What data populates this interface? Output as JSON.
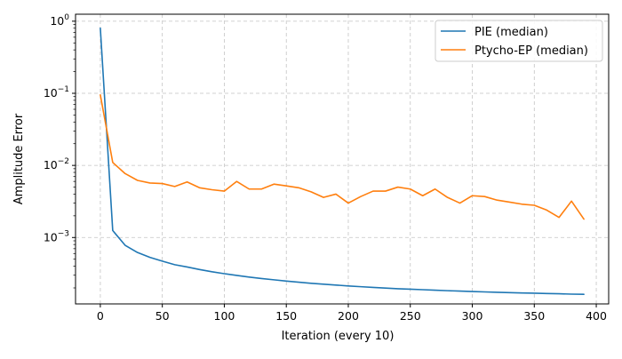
{
  "chart_data": {
    "type": "line",
    "title": "",
    "xlabel": "Iteration (every 10)",
    "ylabel": "Amplitude Error",
    "yscale": "log",
    "xlim": [
      -20,
      410
    ],
    "ylim": [
      0.00012,
      1.25
    ],
    "grid": true,
    "legend_position": "top-right",
    "x_ticks": [
      0,
      50,
      100,
      150,
      200,
      250,
      300,
      350,
      400
    ],
    "x_tick_labels": [
      "0",
      "50",
      "100",
      "150",
      "200",
      "250",
      "300",
      "350",
      "400"
    ],
    "y_ticks": [
      0.001,
      0.01,
      0.1,
      1
    ],
    "y_tick_labels": [
      "10",
      "10",
      "10",
      "10"
    ],
    "y_tick_exponents": [
      "−3",
      "−2",
      "−1",
      "0"
    ],
    "x": [
      0,
      10,
      20,
      30,
      40,
      50,
      60,
      70,
      80,
      90,
      100,
      110,
      120,
      130,
      140,
      150,
      160,
      170,
      180,
      190,
      200,
      210,
      220,
      230,
      240,
      250,
      260,
      270,
      280,
      290,
      300,
      310,
      320,
      330,
      340,
      350,
      360,
      370,
      380,
      390
    ],
    "series": [
      {
        "name": "PIE (median)",
        "color": "#1f77b4",
        "values": [
          0.8,
          0.00125,
          0.00078,
          0.00062,
          0.00053,
          0.00047,
          0.00042,
          0.00039,
          0.00036,
          0.000335,
          0.000315,
          0.000298,
          0.000283,
          0.00027,
          0.000259,
          0.000249,
          0.00024,
          0.000232,
          0.000225,
          0.000219,
          0.000213,
          0.000208,
          0.000203,
          0.000199,
          0.000195,
          0.000192,
          0.000189,
          0.000186,
          0.000183,
          0.000181,
          0.000178,
          0.000176,
          0.000174,
          0.000172,
          0.00017,
          0.000169,
          0.000167,
          0.000166,
          0.000164,
          0.000163
        ]
      },
      {
        "name": "Ptycho-EP (median)",
        "color": "#ff7f0e",
        "values": [
          0.095,
          0.011,
          0.0077,
          0.0062,
          0.0057,
          0.0056,
          0.0051,
          0.0059,
          0.0049,
          0.0046,
          0.0044,
          0.006,
          0.0047,
          0.0047,
          0.0055,
          0.0052,
          0.0049,
          0.0043,
          0.0036,
          0.004,
          0.003,
          0.0037,
          0.0044,
          0.0044,
          0.005,
          0.0047,
          0.0038,
          0.0047,
          0.0036,
          0.003,
          0.0038,
          0.0037,
          0.0033,
          0.0031,
          0.0029,
          0.0028,
          0.0024,
          0.0019,
          0.0032,
          0.0018
        ]
      }
    ]
  }
}
